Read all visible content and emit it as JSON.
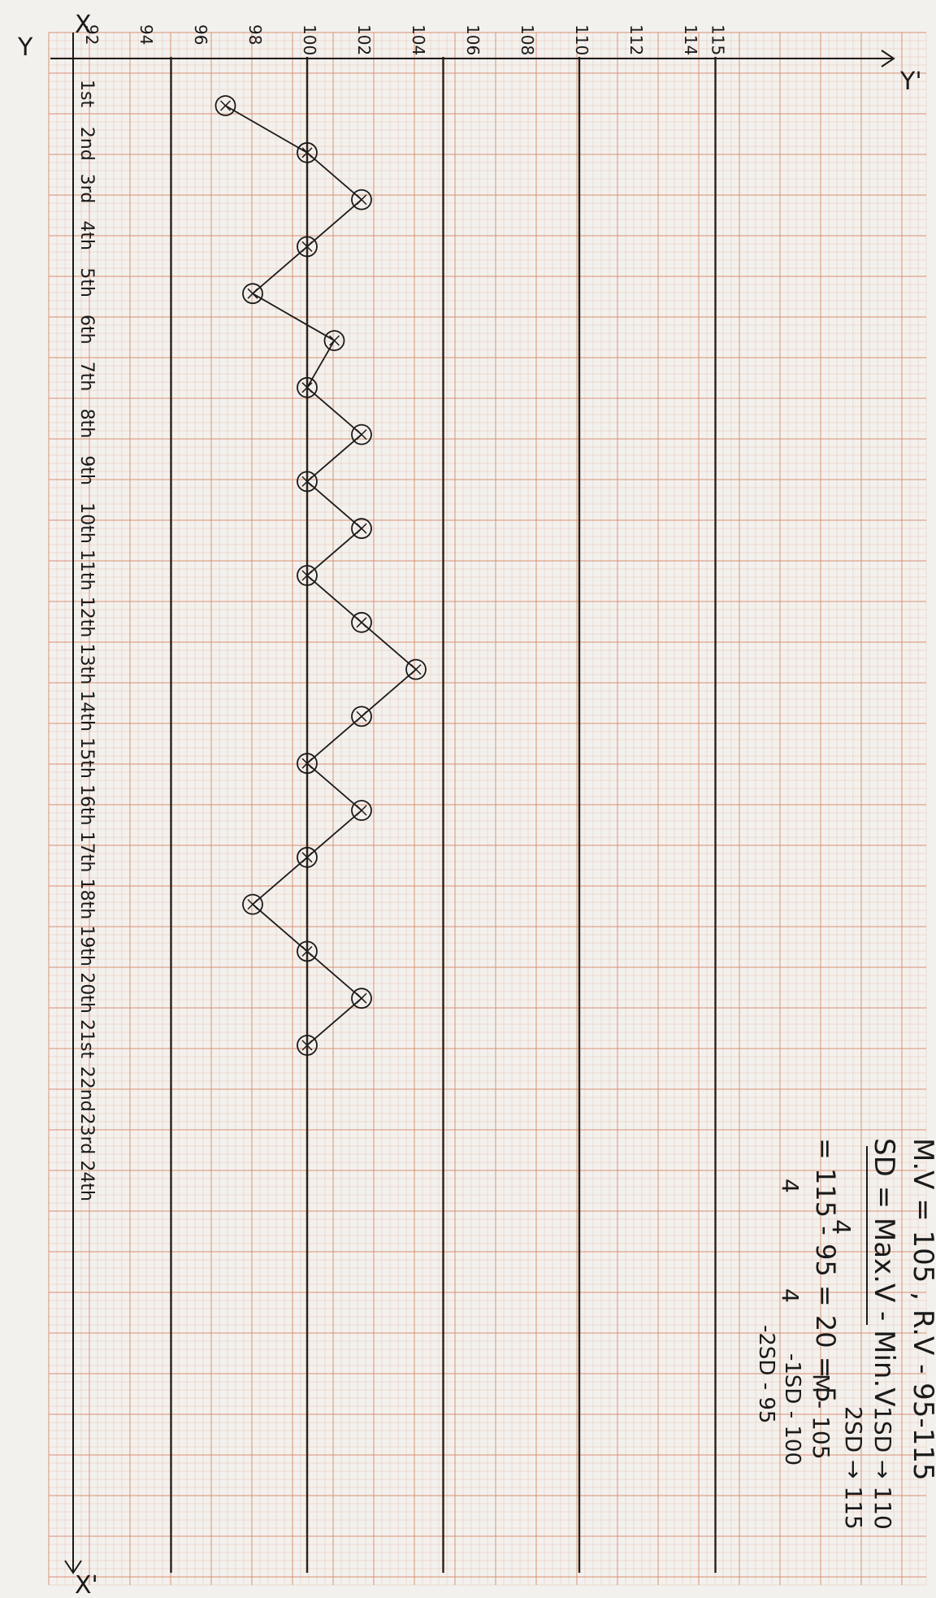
{
  "chart_data": {
    "type": "line",
    "orientation": "rotated-90",
    "x_tick_labels": [
      "1st",
      "2nd",
      "3rd",
      "4th",
      "5th",
      "6th",
      "7th",
      "8th",
      "9th",
      "10th",
      "11th",
      "12th",
      "13th",
      "14th",
      "15th",
      "16th",
      "17th",
      "18th",
      "19th",
      "20th",
      "21st",
      "22nd",
      "23rd",
      "24th"
    ],
    "x_tick_labels_as_drawn": [
      "1st",
      "2nd",
      "3rd",
      "4th",
      "5th",
      "6th",
      "7th",
      "8th",
      "9th",
      "10th",
      "11th",
      "12th",
      "13th",
      "14th",
      "15th",
      "16th",
      "17th",
      "18th",
      "19th",
      "20th",
      "21st",
      "22nd",
      "23rd",
      "24th"
    ],
    "y_ticks": [
      92,
      94,
      96,
      98,
      100,
      102,
      104,
      106,
      108,
      110,
      112,
      114,
      115
    ],
    "y_range": [
      92,
      116
    ],
    "reference_lines": [
      95,
      100,
      105,
      110,
      115
    ],
    "series": [
      {
        "values": [
          97,
          100,
          102,
          100,
          98,
          101,
          100,
          102,
          100,
          102,
          100,
          102,
          104,
          102,
          100,
          102,
          100,
          98,
          100,
          102,
          100
        ]
      }
    ],
    "axis_labels": {
      "x_start": "X",
      "x_end": "X'",
      "y_start": "Y",
      "y_end": "Y'"
    },
    "marker_style": "circled-x",
    "line_color": "#1a1a1a",
    "grid_color": "#d98a6a",
    "paper_color": "#f3f1ee"
  },
  "annotations": {
    "mv_line": "M.V = 105 , R.V - 95-115",
    "sd_line": "SD = Max.V - Min.V",
    "sd_denom": "4",
    "calc_line": "= 115 - 95 = 20 = 5",
    "calc_denom_1": "4",
    "calc_denom_2": "4",
    "right_col": [
      "1SD → 110",
      "2SD → 115",
      "M - 105",
      "-1SD - 100",
      "-2SD - 95"
    ]
  }
}
